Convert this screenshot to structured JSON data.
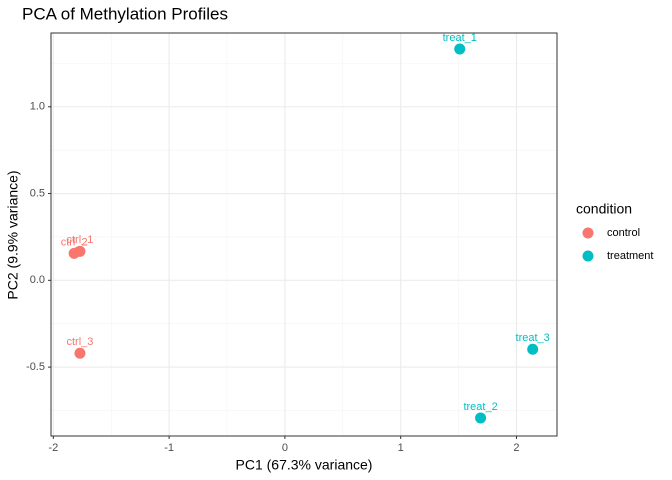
{
  "chart_data": {
    "type": "scatter",
    "title": "PCA of Methylation Profiles",
    "x_label": "PC1 (67.3% variance)",
    "y_label": "PC2 (9.9% variance)",
    "legend_title": "condition",
    "legend_position": "right",
    "grid": true,
    "xlim": [
      -2.02,
      2.35
    ],
    "ylim": [
      -0.897,
      1.425
    ],
    "xticks": [
      -2,
      -1,
      0,
      1,
      2
    ],
    "yticks": [
      {
        "value": -0.5,
        "label": "-0.5"
      },
      {
        "value": 0,
        "label": "0.0"
      },
      {
        "value": 0.5,
        "label": "0.5"
      },
      {
        "value": 1,
        "label": "1.0"
      }
    ],
    "series": [
      {
        "name": "control",
        "color": "#F8766D",
        "x": [
          -1.77,
          -1.82,
          -1.77
        ],
        "values": [
          0.167,
          0.155,
          -0.42
        ],
        "labels": [
          "ctrl_1",
          "ctrl_2",
          "ctrl_3"
        ]
      },
      {
        "name": "treatment",
        "color": "#00BFC4",
        "x": [
          1.51,
          1.69,
          2.14
        ],
        "values": [
          1.333,
          -0.793,
          -0.397
        ],
        "labels": [
          "treat_1",
          "treat_2",
          "treat_3"
        ]
      }
    ]
  }
}
